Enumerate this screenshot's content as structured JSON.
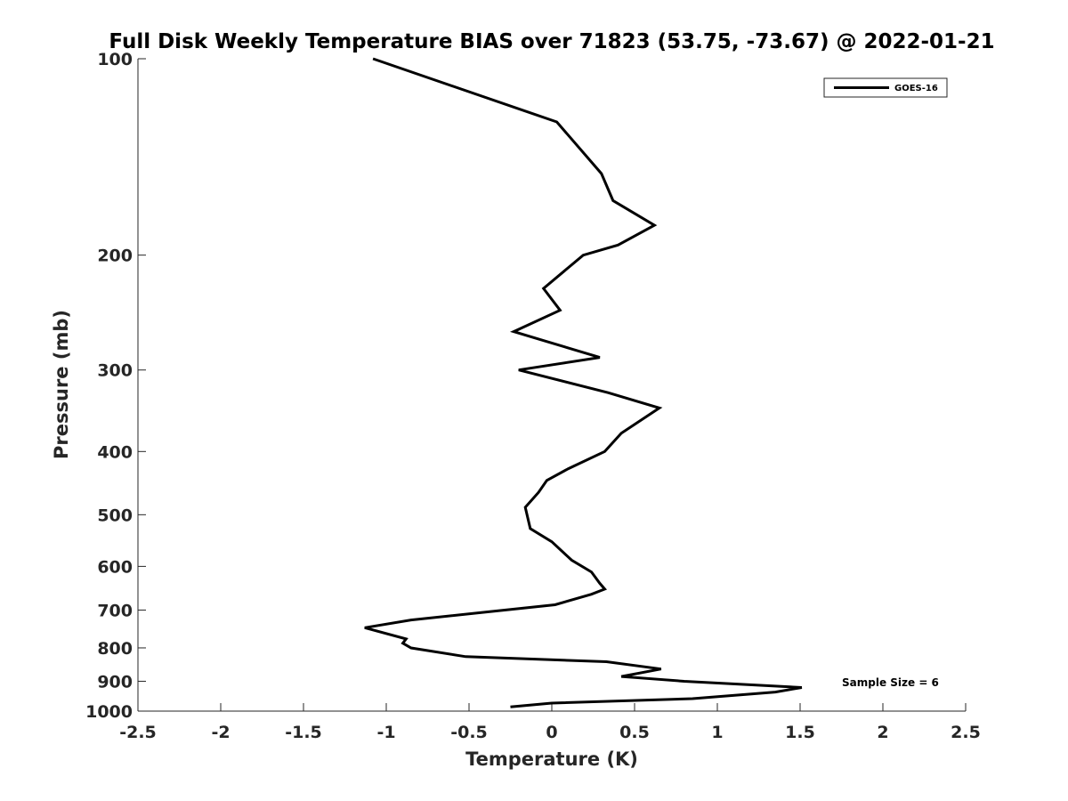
{
  "chart_data": {
    "type": "line",
    "title": "Full Disk Weekly Temperature BIAS over 71823 (53.75, -73.67) @ 2022-01-21",
    "xlabel": "Temperature (K)",
    "ylabel": "Pressure (mb)",
    "xlim": [
      -2.5,
      2.5
    ],
    "ylim": [
      1000,
      100
    ],
    "y_scale": "log",
    "x_ticks": [
      "-2.5",
      "-2",
      "-1.5",
      "-1",
      "-0.5",
      "0",
      "0.5",
      "1",
      "1.5",
      "2",
      "2.5"
    ],
    "x_tick_values": [
      -2.5,
      -2,
      -1.5,
      -1,
      -0.5,
      0,
      0.5,
      1,
      1.5,
      2,
      2.5
    ],
    "y_ticks": [
      "100",
      "200",
      "300",
      "400",
      "500",
      "600",
      "700",
      "800",
      "900",
      "1000"
    ],
    "y_tick_values": [
      100,
      200,
      300,
      400,
      500,
      600,
      700,
      800,
      900,
      1000
    ],
    "grid": false,
    "legend_position": "top-right",
    "annotation": "Sample Size = 6",
    "series": [
      {
        "name": "GOES-16",
        "color": "#000000",
        "points": [
          [
            -1.08,
            100
          ],
          [
            0.03,
            125
          ],
          [
            0.3,
            150
          ],
          [
            0.37,
            165
          ],
          [
            0.62,
            180
          ],
          [
            0.4,
            193
          ],
          [
            0.19,
            200
          ],
          [
            -0.05,
            225
          ],
          [
            0.05,
            243
          ],
          [
            -0.23,
            262
          ],
          [
            0.29,
            287
          ],
          [
            -0.2,
            300
          ],
          [
            0.34,
            325
          ],
          [
            0.65,
            343
          ],
          [
            0.42,
            375
          ],
          [
            0.32,
            400
          ],
          [
            0.1,
            425
          ],
          [
            -0.03,
            443
          ],
          [
            -0.08,
            462
          ],
          [
            -0.16,
            487
          ],
          [
            -0.13,
            525
          ],
          [
            0.0,
            550
          ],
          [
            0.12,
            587
          ],
          [
            0.24,
            612
          ],
          [
            0.29,
            637
          ],
          [
            0.32,
            650
          ],
          [
            0.24,
            662
          ],
          [
            0.02,
            687
          ],
          [
            -0.4,
            705
          ],
          [
            -0.85,
            725
          ],
          [
            -1.13,
            745
          ],
          [
            -0.88,
            775
          ],
          [
            -0.9,
            787
          ],
          [
            -0.85,
            800
          ],
          [
            -0.52,
            825
          ],
          [
            0.33,
            840
          ],
          [
            0.66,
            862
          ],
          [
            0.42,
            885
          ],
          [
            0.8,
            900
          ],
          [
            1.51,
            920
          ],
          [
            1.35,
            935
          ],
          [
            0.85,
            957
          ],
          [
            0.0,
            972
          ],
          [
            -0.25,
            985
          ]
        ]
      }
    ]
  }
}
